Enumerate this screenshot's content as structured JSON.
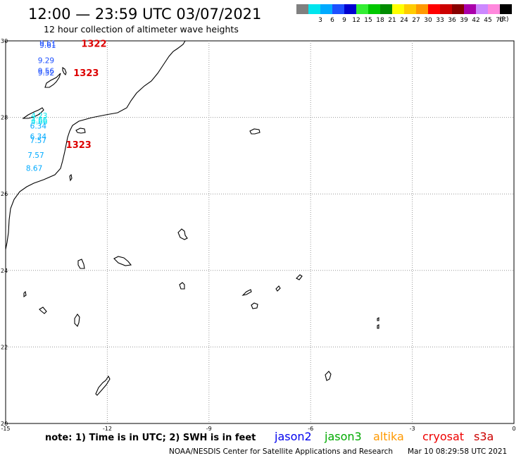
{
  "header": {
    "title": "12:00 — 23:59 UTC 03/07/2021",
    "subtitle": "12 hour collection of altimeter wave heights"
  },
  "legend": {
    "unit": "(ft)",
    "bins": [
      {
        "color": "#808080",
        "label": ""
      },
      {
        "color": "#00e5ee",
        "label": "3"
      },
      {
        "color": "#00aaff",
        "label": "6"
      },
      {
        "color": "#1e50ff",
        "label": "9"
      },
      {
        "color": "#0000d0",
        "label": "12"
      },
      {
        "color": "#33ee33",
        "label": "15"
      },
      {
        "color": "#00c800",
        "label": "18"
      },
      {
        "color": "#008c00",
        "label": "21"
      },
      {
        "color": "#ffff00",
        "label": "24"
      },
      {
        "color": "#ffcc00",
        "label": "27"
      },
      {
        "color": "#ff9900",
        "label": "30"
      },
      {
        "color": "#ff0000",
        "label": "33"
      },
      {
        "color": "#cc0000",
        "label": "36"
      },
      {
        "color": "#880000",
        "label": "39"
      },
      {
        "color": "#aa00aa",
        "label": "42"
      },
      {
        "color": "#cc88ff",
        "label": "45"
      },
      {
        "color": "#ff88dd",
        "label": "70"
      },
      {
        "color": "#000000",
        "label": ""
      }
    ]
  },
  "axes": {
    "lon_ticks": [
      {
        "value": -15,
        "label": "-15"
      },
      {
        "value": -12,
        "label": "-12"
      },
      {
        "value": -9,
        "label": "-9"
      },
      {
        "value": -6,
        "label": "-6"
      },
      {
        "value": -3,
        "label": "-3"
      },
      {
        "value": 0,
        "label": "0"
      }
    ],
    "lat_ticks": [
      {
        "value": 30,
        "label": "30"
      },
      {
        "value": 28,
        "label": "28"
      },
      {
        "value": 26,
        "label": "26"
      },
      {
        "value": 24,
        "label": "24"
      },
      {
        "value": 22,
        "label": "22"
      },
      {
        "value": 20,
        "label": "20"
      }
    ],
    "lon_range": [
      -15,
      0
    ],
    "lat_range": [
      20,
      30
    ],
    "grid": true
  },
  "observations": [
    {
      "value": "9.61",
      "lon": -14.0,
      "lat": 29.86,
      "color": "#1e50ff"
    },
    {
      "value": "9.61",
      "lon": -14.0,
      "lat": 29.82,
      "color": "#1e50ff"
    },
    {
      "value": "9.29",
      "lon": -14.05,
      "lat": 29.42,
      "color": "#1e50ff"
    },
    {
      "value": "9.56",
      "lon": -14.05,
      "lat": 29.14,
      "color": "#1e50ff"
    },
    {
      "value": "9.52",
      "lon": -14.05,
      "lat": 29.1,
      "color": "#1e50ff"
    },
    {
      "value": "4.23",
      "lon": -14.25,
      "lat": 27.97,
      "color": "#00e5ee"
    },
    {
      "value": "4.66",
      "lon": -14.25,
      "lat": 27.86,
      "color": "#00e5ee"
    },
    {
      "value": "4.66",
      "lon": -14.25,
      "lat": 27.82,
      "color": "#00e5ee"
    },
    {
      "value": "6.34",
      "lon": -14.28,
      "lat": 27.71,
      "color": "#00aaff"
    },
    {
      "value": "6.34",
      "lon": -14.28,
      "lat": 27.43,
      "color": "#00aaff"
    },
    {
      "value": "7.57",
      "lon": -14.28,
      "lat": 27.33,
      "color": "#00aaff"
    },
    {
      "value": "7.57",
      "lon": -14.35,
      "lat": 26.94,
      "color": "#00aaff"
    },
    {
      "value": "8.67",
      "lon": -14.4,
      "lat": 26.6,
      "color": "#00aaff"
    }
  ],
  "pass_times": [
    {
      "label": "1322",
      "lon": -12.77,
      "lat": 29.84
    },
    {
      "label": "1323",
      "lon": -13.0,
      "lat": 29.08
    },
    {
      "label": "1323",
      "lon": -13.22,
      "lat": 27.2
    }
  ],
  "footer": {
    "note": "note:  1) Time is in UTC;  2) SWH is in feet",
    "satellites": [
      {
        "name": "jason2",
        "color": "#0000ee"
      },
      {
        "name": "jason3",
        "color": "#00aa00"
      },
      {
        "name": "altika",
        "color": "#ff9900"
      },
      {
        "name": "cryosat",
        "color": "#ee0000"
      },
      {
        "name": "s3a",
        "color": "#cc0000"
      }
    ],
    "credit": "NOAA/NESDIS Center for Satellite Applications and Research",
    "timestamp": "Mar 10 08:29:58 UTC 2021"
  },
  "colors": {
    "pass_time": "#dd0000",
    "grid": "#999999",
    "coast": "#000000"
  }
}
